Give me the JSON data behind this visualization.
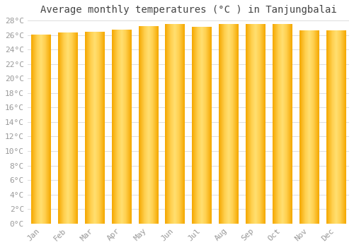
{
  "title": "Average monthly temperatures (°C ) in Tanjungbalai",
  "months": [
    "Jan",
    "Feb",
    "Mar",
    "Apr",
    "May",
    "Jun",
    "Jul",
    "Aug",
    "Sep",
    "Oct",
    "Nov",
    "Dec"
  ],
  "values": [
    26.0,
    26.3,
    26.4,
    26.7,
    27.2,
    27.5,
    27.1,
    27.5,
    27.5,
    27.5,
    26.6,
    26.6
  ],
  "bar_color_outer": "#F5A800",
  "bar_color_inner": "#FFD050",
  "background_color": "#FFFFFF",
  "grid_color": "#DDDDDD",
  "ylim": [
    0,
    28
  ],
  "ytick_step": 2,
  "title_fontsize": 10,
  "tick_fontsize": 8,
  "tick_color": "#999999",
  "title_color": "#444444"
}
